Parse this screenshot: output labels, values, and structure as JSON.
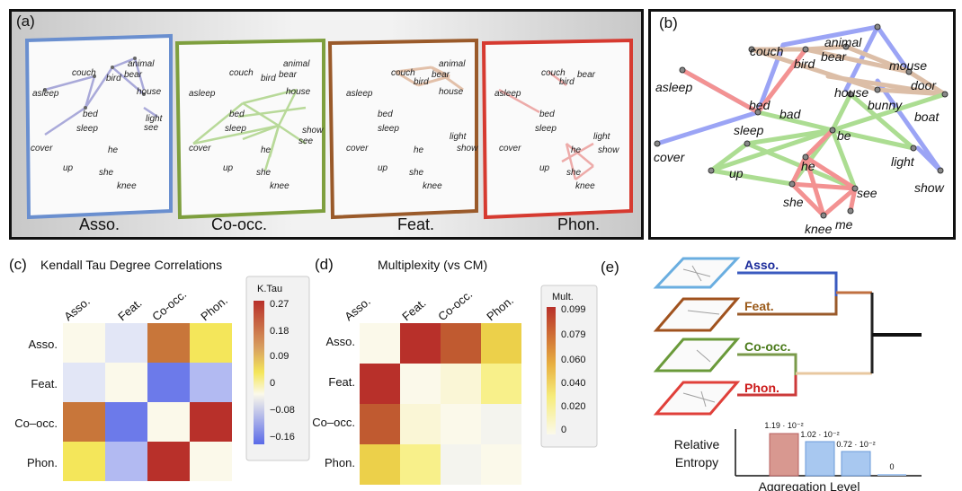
{
  "panel_a": {
    "label": "(a)",
    "layers": [
      {
        "name": "Asso.",
        "color": "#5b7fc4"
      },
      {
        "name": "Co-occ.",
        "color": "#7a9c3a"
      },
      {
        "name": "Feat.",
        "color": "#9a5a2a"
      },
      {
        "name": "Phon.",
        "color": "#d63a30"
      }
    ]
  },
  "panel_b": {
    "label": "(b)",
    "words": [
      "couch",
      "animal",
      "bird",
      "bear",
      "mouse",
      "asleep",
      "house",
      "door",
      "bed",
      "bad",
      "bunny",
      "boat",
      "sleep",
      "be",
      "cover",
      "he",
      "light",
      "up",
      "show",
      "she",
      "see",
      "knee",
      "me"
    ]
  },
  "panel_c": {
    "label": "(c)",
    "title": "Kendall Tau Degree Correlations",
    "col_labels": [
      "Asso.",
      "Feat.",
      "Co-occ.",
      "Phon."
    ],
    "row_labels": [
      "Asso.",
      "Feat.",
      "Co–occ.",
      "Phon."
    ],
    "legend_title": "K.Tau",
    "legend_ticks": [
      "0.27",
      "0.18",
      "0.09",
      "0",
      "−0.08",
      "−0.16"
    ]
  },
  "panel_d": {
    "label": "(d)",
    "title": "Multiplexity (vs CM)",
    "col_labels": [
      "Asso.",
      "Feat.",
      "Co-occ.",
      "Phon."
    ],
    "row_labels": [
      "Asso.",
      "Feat.",
      "Co–occ.",
      "Phon."
    ],
    "legend_title": "Mult.",
    "legend_ticks": [
      "0.099",
      "0.079",
      "0.060",
      "0.040",
      "0.020",
      "0"
    ]
  },
  "panel_e": {
    "label": "(e)",
    "layers": [
      {
        "name": "Asso.",
        "color": "#1a2a9a",
        "frame": "#6aaee0"
      },
      {
        "name": "Feat.",
        "color": "#9a5a1a",
        "frame": "#a0521e"
      },
      {
        "name": "Co-occ.",
        "color": "#4a7a1a",
        "frame": "#6a9a3a"
      },
      {
        "name": "Phon.",
        "color": "#cc1a1a",
        "frame": "#e0403a"
      }
    ],
    "entropy_label_1": "Relative",
    "entropy_label_2": "Entropy",
    "xaxis_label": "Aggregation Level",
    "bar_labels": [
      "1.19 · 10⁻²",
      "1.02 · 10⁻²",
      "0.72 · 10⁻²",
      "0"
    ]
  }
}
